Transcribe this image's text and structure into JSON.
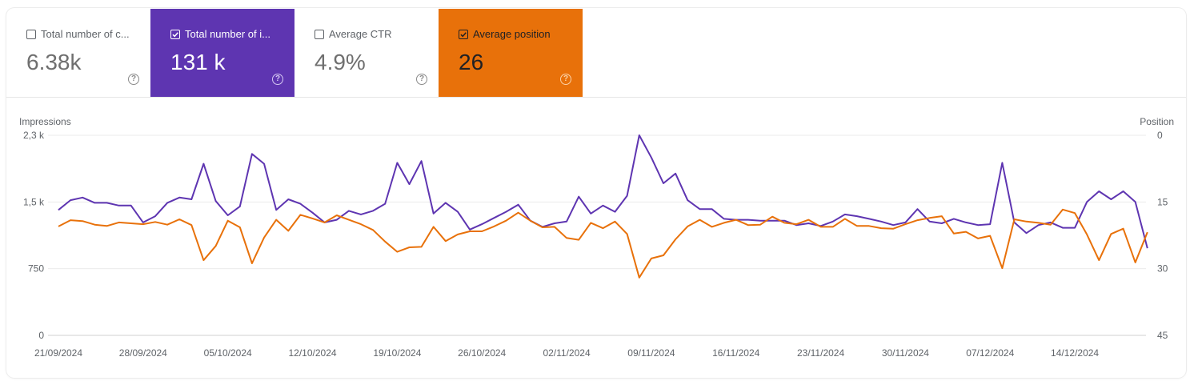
{
  "metrics": [
    {
      "label": "Total number of c...",
      "value": "6.38k",
      "checked": false,
      "color": "#ffffff"
    },
    {
      "label": "Total number of i...",
      "value": "131 k",
      "checked": true,
      "color": "#5e35b1"
    },
    {
      "label": "Average CTR",
      "value": "4.9%",
      "checked": false,
      "color": "#ffffff"
    },
    {
      "label": "Average position",
      "value": "26",
      "checked": true,
      "color": "#e8710a"
    }
  ],
  "help_icon": "?",
  "chart_data": {
    "type": "line",
    "left_axis": {
      "label": "Impressions",
      "ticks": [
        "2,3 k",
        "1,5 k",
        "750",
        "0"
      ],
      "tick_values": [
        2250,
        1500,
        750,
        0
      ],
      "range": [
        0,
        2250
      ]
    },
    "right_axis": {
      "label": "Position",
      "ticks": [
        "0",
        "15",
        "30",
        "45"
      ],
      "tick_values": [
        0,
        15,
        30,
        45
      ],
      "range": [
        0,
        45
      ],
      "inverted": true
    },
    "x_labels": [
      "21/09/2024",
      "28/09/2024",
      "05/10/2024",
      "12/10/2024",
      "19/10/2024",
      "26/10/2024",
      "02/11/2024",
      "09/11/2024",
      "16/11/2024",
      "23/11/2024",
      "30/11/2024",
      "07/12/2024",
      "14/12/2024"
    ],
    "start_date": "21/09/2024",
    "series": [
      {
        "name": "Impressions",
        "axis": "left",
        "color": "#5e35b1",
        "values": [
          1410,
          1520,
          1550,
          1490,
          1490,
          1460,
          1460,
          1270,
          1340,
          1490,
          1550,
          1530,
          1930,
          1510,
          1350,
          1450,
          2040,
          1930,
          1410,
          1530,
          1480,
          1380,
          1270,
          1300,
          1400,
          1360,
          1400,
          1480,
          1940,
          1700,
          1960,
          1370,
          1490,
          1390,
          1190,
          1250,
          1320,
          1390,
          1470,
          1290,
          1220,
          1260,
          1280,
          1560,
          1370,
          1460,
          1390,
          1570,
          2250,
          2000,
          1710,
          1820,
          1520,
          1420,
          1420,
          1310,
          1300,
          1300,
          1290,
          1290,
          1290,
          1240,
          1260,
          1230,
          1280,
          1360,
          1340,
          1310,
          1280,
          1240,
          1270,
          1420,
          1280,
          1260,
          1310,
          1270,
          1240,
          1250,
          1940,
          1270,
          1150,
          1240,
          1270,
          1210,
          1210,
          1500,
          1620,
          1530,
          1620,
          1500,
          980
        ]
      },
      {
        "name": "Average position",
        "axis": "right",
        "color": "#e8710a",
        "values": [
          20.5,
          19.1,
          19.3,
          20.1,
          20.4,
          19.6,
          19.8,
          20.0,
          19.5,
          20.1,
          18.9,
          20.2,
          28.1,
          24.9,
          19.2,
          20.7,
          28.8,
          23.0,
          19.0,
          21.5,
          17.9,
          18.7,
          19.6,
          18.0,
          19.0,
          20.0,
          21.3,
          23.9,
          26.2,
          25.2,
          25.1,
          20.6,
          23.8,
          22.3,
          21.6,
          21.6,
          20.5,
          19.2,
          17.4,
          19.2,
          20.7,
          20.6,
          23.1,
          23.5,
          19.7,
          20.9,
          19.4,
          22.2,
          32.0,
          27.7,
          27.0,
          23.4,
          20.5,
          19.0,
          20.6,
          19.7,
          19.0,
          20.2,
          20.1,
          18.3,
          19.7,
          20.0,
          19.0,
          20.6,
          20.6,
          18.8,
          20.4,
          20.4,
          20.9,
          21.0,
          20.0,
          19.1,
          18.6,
          18.2,
          22.1,
          21.7,
          23.2,
          22.6,
          29.9,
          18.9,
          19.4,
          19.7,
          20.1,
          16.7,
          17.5,
          22.3,
          28.1,
          22.2,
          21.0,
          28.6,
          21.8
        ]
      }
    ]
  }
}
